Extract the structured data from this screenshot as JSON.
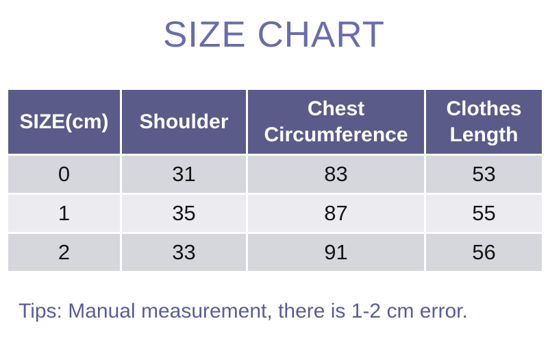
{
  "page": {
    "title": "SIZE CHART",
    "tip": "Tips: Manual measurement, there is 1-2 cm error."
  },
  "colors": {
    "title_color": "#696cac",
    "header_bg": "#5a5b89",
    "header_text": "#ffffff",
    "row_odd_bg": "#d6d6dd",
    "row_even_bg": "#ebebf0",
    "cell_text": "#141414",
    "tip_color": "#5c5c99",
    "page_bg": "#ffffff"
  },
  "chart_data": {
    "type": "table",
    "title": "SIZE CHART",
    "unit": "cm",
    "columns": [
      "SIZE(cm)",
      "Shoulder",
      "Chest Circumference",
      "Clothes Length"
    ],
    "rows": [
      [
        "0",
        "31",
        "83",
        "53"
      ],
      [
        "1",
        "35",
        "87",
        "55"
      ],
      [
        "2",
        "33",
        "91",
        "56"
      ]
    ],
    "note": "Tips: Manual measurement, there is 1-2 cm error."
  }
}
